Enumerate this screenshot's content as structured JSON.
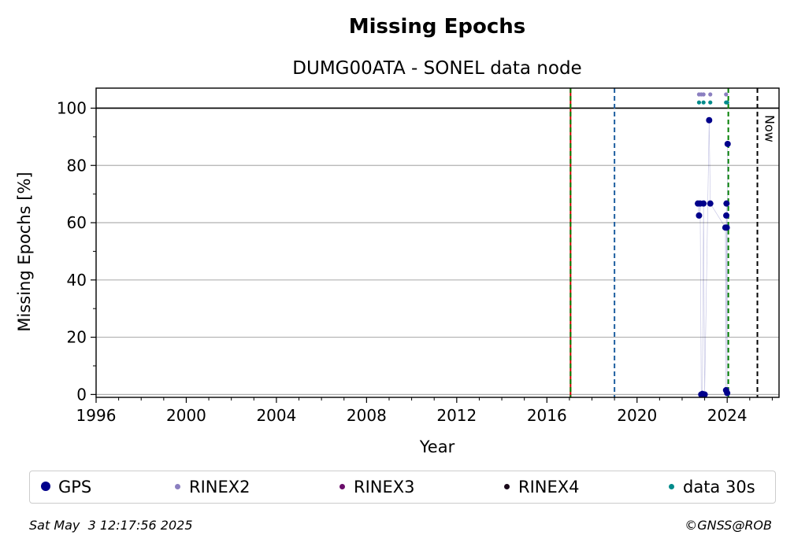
{
  "chart_data": {
    "type": "scatter",
    "title": "Missing Epochs",
    "subtitle": "DUMG00ATA - SONEL data node",
    "xlabel": "Year",
    "ylabel": "Missing Epochs [%]",
    "xlim": [
      1996,
      2026.3
    ],
    "ylim": [
      -1,
      107
    ],
    "xticks": [
      1996,
      2000,
      2004,
      2008,
      2012,
      2016,
      2020,
      2024
    ],
    "yticks": [
      0,
      20,
      40,
      60,
      80,
      100
    ],
    "grid": "horizontal",
    "legend_position": "bottom",
    "series": [
      {
        "name": "GPS",
        "color": "#00008b",
        "points": [
          [
            2022.7,
            66.7
          ],
          [
            2022.75,
            62.5
          ],
          [
            2022.8,
            66.7
          ],
          [
            2022.85,
            0
          ],
          [
            2022.9,
            0.2
          ],
          [
            2022.95,
            66.7
          ],
          [
            2023.0,
            0
          ],
          [
            2023.2,
            95.8
          ],
          [
            2023.25,
            66.7
          ],
          [
            2023.92,
            58.3
          ],
          [
            2023.95,
            1.5
          ],
          [
            2023.96,
            62.5
          ],
          [
            2023.97,
            66.7
          ],
          [
            2023.98,
            58.3
          ],
          [
            2024.0,
            0.5
          ],
          [
            2024.02,
            87.5
          ]
        ]
      },
      {
        "name": "RINEX2",
        "color": "#8b7fc0",
        "points": [
          [
            2022.75,
            104.8
          ],
          [
            2022.85,
            104.8
          ],
          [
            2022.95,
            104.8
          ],
          [
            2023.25,
            104.8
          ],
          [
            2023.95,
            104.8
          ]
        ]
      },
      {
        "name": "RINEX3",
        "color": "#6a0d6a",
        "points": []
      },
      {
        "name": "RINEX4",
        "color": "#1a0a1a",
        "points": []
      },
      {
        "name": "data 30s",
        "color": "#008b8b",
        "points": [
          [
            2022.75,
            102
          ],
          [
            2022.95,
            102
          ],
          [
            2023.25,
            102
          ],
          [
            2023.95,
            102
          ],
          [
            2024.0,
            102
          ]
        ]
      }
    ],
    "reference_lines": [
      {
        "axis": "y",
        "value": 100,
        "color": "#000000",
        "style": "solid"
      },
      {
        "axis": "x",
        "value": 2017.05,
        "color": "#cc0000",
        "style": "solid"
      },
      {
        "axis": "x",
        "value": 2017.05,
        "color": "#008000",
        "style": "dashed"
      },
      {
        "axis": "x",
        "value": 2019.0,
        "color": "#1f5fa0",
        "style": "dashed"
      },
      {
        "axis": "x",
        "value": 2024.05,
        "color": "#008000",
        "style": "dashed"
      },
      {
        "axis": "x",
        "value": 2025.34,
        "color": "#000000",
        "style": "dashed",
        "label": "Now"
      }
    ]
  },
  "footer": {
    "timestamp": "Sat May  3 12:17:56 2025",
    "credit": "©GNSS@ROB"
  }
}
